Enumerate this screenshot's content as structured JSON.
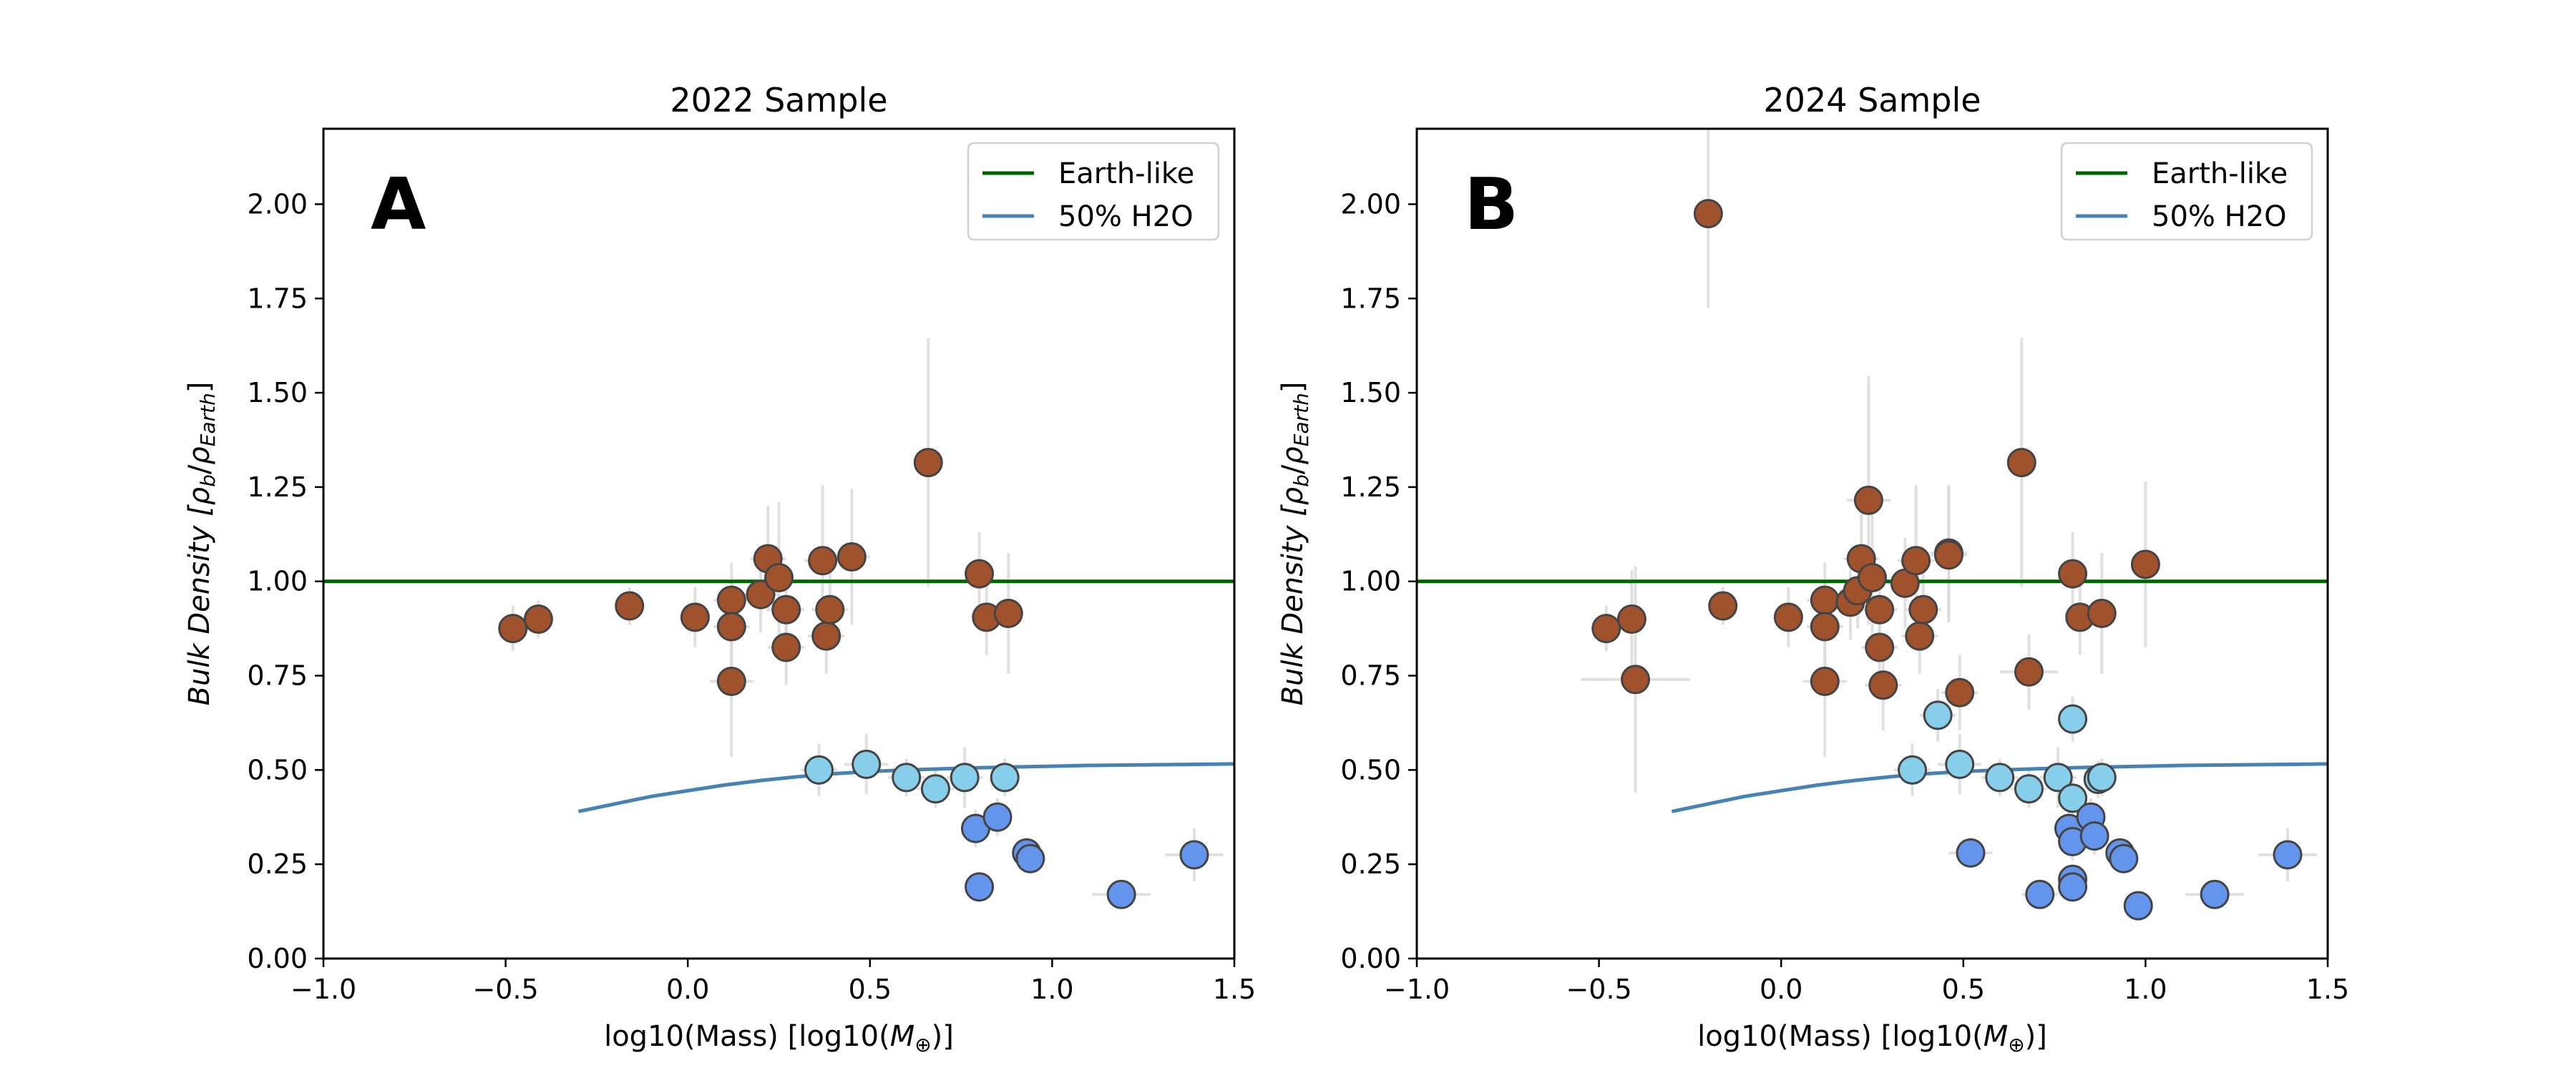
{
  "chart_data": [
    {
      "type": "scatter",
      "title": "2022 Sample",
      "panel_letter": "A",
      "xlabel_text": "log10(Mass) [log10(",
      "xlabel_symbol": "M",
      "xlabel_sub": "⊕",
      "xlabel_end": ")]",
      "ylabel_text": "Bulk Density [",
      "ylabel_rho": "ρ",
      "ylabel_sub_b": "b",
      "ylabel_slash": "/",
      "ylabel_sub_earth": "Earth",
      "ylabel_end": "]",
      "xlim": [
        -1.0,
        1.5
      ],
      "ylim": [
        0.0,
        2.2
      ],
      "xticks": [
        -1.0,
        -0.5,
        0.0,
        0.5,
        1.0,
        1.5
      ],
      "xtick_labels": [
        "−1.0",
        "−0.5",
        "0.0",
        "0.5",
        "1.0",
        "1.5"
      ],
      "yticks": [
        0.0,
        0.25,
        0.5,
        0.75,
        1.0,
        1.25,
        1.5,
        1.75,
        2.0
      ],
      "ytick_labels": [
        "0.00",
        "0.25",
        "0.50",
        "0.75",
        "1.00",
        "1.25",
        "1.50",
        "1.75",
        "2.00"
      ],
      "legend": {
        "placement": "top-right",
        "entries": [
          {
            "label": "Earth-like",
            "color": "#006400"
          },
          {
            "label": "50% H2O",
            "color": "#4682b4"
          }
        ]
      },
      "earth_like_line": {
        "y": 1.0,
        "color": "#006400"
      },
      "h2o_curve": {
        "color": "#4682b4",
        "x": [
          -0.3,
          -0.2,
          -0.1,
          0.0,
          0.1,
          0.2,
          0.3,
          0.4,
          0.5,
          0.6,
          0.7,
          0.8,
          0.9,
          1.0,
          1.1,
          1.2,
          1.3,
          1.4,
          1.5
        ],
        "y": [
          0.39,
          0.41,
          0.43,
          0.445,
          0.46,
          0.472,
          0.482,
          0.49,
          0.496,
          0.5,
          0.503,
          0.506,
          0.508,
          0.51,
          0.512,
          0.513,
          0.514,
          0.515,
          0.516
        ]
      },
      "series": [
        {
          "group": "rocky",
          "color": "#a0522d",
          "points": [
            {
              "x": -0.48,
              "y": 0.875,
              "xerr": 0.04,
              "yerr": 0.06
            },
            {
              "x": -0.41,
              "y": 0.9,
              "xerr": 0.04,
              "yerr": 0.05
            },
            {
              "x": -0.16,
              "y": 0.935,
              "xerr": 0.04,
              "yerr": 0.05
            },
            {
              "x": 0.02,
              "y": 0.905,
              "xerr": 0.04,
              "yerr": 0.08
            },
            {
              "x": 0.12,
              "y": 0.95,
              "xerr": 0.05,
              "yerr": 0.1
            },
            {
              "x": 0.12,
              "y": 0.88,
              "xerr": 0.05,
              "yerr": 0.12
            },
            {
              "x": 0.12,
              "y": 0.735,
              "xerr": 0.06,
              "yerr": 0.2
            },
            {
              "x": 0.2,
              "y": 0.965,
              "xerr": 0.05,
              "yerr": 0.1
            },
            {
              "x": 0.22,
              "y": 1.06,
              "xerr": 0.05,
              "yerr": 0.14
            },
            {
              "x": 0.25,
              "y": 1.01,
              "xerr": 0.04,
              "yerr": 0.2
            },
            {
              "x": 0.27,
              "y": 0.925,
              "xerr": 0.05,
              "yerr": 0.1
            },
            {
              "x": 0.27,
              "y": 0.825,
              "xerr": 0.05,
              "yerr": 0.1
            },
            {
              "x": 0.37,
              "y": 1.055,
              "xerr": 0.05,
              "yerr": 0.2
            },
            {
              "x": 0.38,
              "y": 0.855,
              "xerr": 0.05,
              "yerr": 0.1
            },
            {
              "x": 0.39,
              "y": 0.925,
              "xerr": 0.05,
              "yerr": 0.1
            },
            {
              "x": 0.45,
              "y": 1.065,
              "xerr": 0.05,
              "yerr": 0.18
            },
            {
              "x": 0.66,
              "y": 1.315,
              "xerr": 0.03,
              "yerr": 0.33
            },
            {
              "x": 0.8,
              "y": 1.02,
              "xerr": 0.03,
              "yerr": 0.11
            },
            {
              "x": 0.82,
              "y": 0.905,
              "xerr": 0.03,
              "yerr": 0.1
            },
            {
              "x": 0.88,
              "y": 0.915,
              "xerr": 0.03,
              "yerr": 0.16
            }
          ]
        },
        {
          "group": "water-rich",
          "color": "#87ceeb",
          "points": [
            {
              "x": 0.36,
              "y": 0.5,
              "xerr": 0.05,
              "yerr": 0.07
            },
            {
              "x": 0.49,
              "y": 0.515,
              "xerr": 0.06,
              "yerr": 0.08
            },
            {
              "x": 0.6,
              "y": 0.48,
              "xerr": 0.05,
              "yerr": 0.05
            },
            {
              "x": 0.68,
              "y": 0.45,
              "xerr": 0.05,
              "yerr": 0.05
            },
            {
              "x": 0.76,
              "y": 0.48,
              "xerr": 0.05,
              "yerr": 0.08
            },
            {
              "x": 0.87,
              "y": 0.48,
              "xerr": 0.04,
              "yerr": 0.05
            }
          ]
        },
        {
          "group": "low-density",
          "color": "#6495ed",
          "points": [
            {
              "x": 0.79,
              "y": 0.345,
              "xerr": 0.04,
              "yerr": 0.05
            },
            {
              "x": 0.8,
              "y": 0.19,
              "xerr": 0.04,
              "yerr": 0.04
            },
            {
              "x": 0.85,
              "y": 0.375,
              "xerr": 0.04,
              "yerr": 0.05
            },
            {
              "x": 0.93,
              "y": 0.28,
              "xerr": 0.04,
              "yerr": 0.04
            },
            {
              "x": 0.94,
              "y": 0.265,
              "xerr": 0.04,
              "yerr": 0.04
            },
            {
              "x": 1.19,
              "y": 0.17,
              "xerr": 0.08,
              "yerr": 0.03
            },
            {
              "x": 1.39,
              "y": 0.275,
              "xerr": 0.08,
              "yerr": 0.07
            }
          ]
        }
      ]
    },
    {
      "type": "scatter",
      "title": "2024 Sample",
      "panel_letter": "B",
      "xlabel_text": "log10(Mass) [log10(",
      "xlabel_symbol": "M",
      "xlabel_sub": "⊕",
      "xlabel_end": ")]",
      "ylabel_text": "Bulk Density [",
      "ylabel_rho": "ρ",
      "ylabel_sub_b": "b",
      "ylabel_slash": "/",
      "ylabel_sub_earth": "Earth",
      "ylabel_end": "]",
      "xlim": [
        -1.0,
        1.5
      ],
      "ylim": [
        0.0,
        2.2
      ],
      "xticks": [
        -1.0,
        -0.5,
        0.0,
        0.5,
        1.0,
        1.5
      ],
      "xtick_labels": [
        "−1.0",
        "−0.5",
        "0.0",
        "0.5",
        "1.0",
        "1.5"
      ],
      "yticks": [
        0.0,
        0.25,
        0.5,
        0.75,
        1.0,
        1.25,
        1.5,
        1.75,
        2.0
      ],
      "ytick_labels": [
        "0.00",
        "0.25",
        "0.50",
        "0.75",
        "1.00",
        "1.25",
        "1.50",
        "1.75",
        "2.00"
      ],
      "legend": {
        "placement": "top-right",
        "entries": [
          {
            "label": "Earth-like",
            "color": "#006400"
          },
          {
            "label": "50% H2O",
            "color": "#4682b4"
          }
        ]
      },
      "earth_like_line": {
        "y": 1.0,
        "color": "#006400"
      },
      "h2o_curve": {
        "color": "#4682b4",
        "x": [
          -0.3,
          -0.2,
          -0.1,
          0.0,
          0.1,
          0.2,
          0.3,
          0.4,
          0.5,
          0.6,
          0.7,
          0.8,
          0.9,
          1.0,
          1.1,
          1.2,
          1.3,
          1.4,
          1.5
        ],
        "y": [
          0.39,
          0.41,
          0.43,
          0.445,
          0.46,
          0.472,
          0.482,
          0.49,
          0.496,
          0.5,
          0.503,
          0.506,
          0.508,
          0.51,
          0.512,
          0.513,
          0.514,
          0.515,
          0.516
        ]
      },
      "series": [
        {
          "group": "rocky",
          "color": "#a0522d",
          "points": [
            {
              "x": -0.2,
              "y": 1.975,
              "xerr": 0.03,
              "yerr": 0.25
            },
            {
              "x": -0.48,
              "y": 0.875,
              "xerr": 0.04,
              "yerr": 0.06
            },
            {
              "x": -0.41,
              "y": 0.9,
              "xerr": 0.04,
              "yerr": 0.13
            },
            {
              "x": -0.4,
              "y": 0.74,
              "xerr": 0.15,
              "yerr": 0.3
            },
            {
              "x": -0.16,
              "y": 0.935,
              "xerr": 0.04,
              "yerr": 0.05
            },
            {
              "x": 0.02,
              "y": 0.905,
              "xerr": 0.04,
              "yerr": 0.08
            },
            {
              "x": 0.12,
              "y": 0.95,
              "xerr": 0.05,
              "yerr": 0.1
            },
            {
              "x": 0.12,
              "y": 0.88,
              "xerr": 0.05,
              "yerr": 0.12
            },
            {
              "x": 0.12,
              "y": 0.735,
              "xerr": 0.06,
              "yerr": 0.2
            },
            {
              "x": 0.19,
              "y": 0.945,
              "xerr": 0.05,
              "yerr": 0.1
            },
            {
              "x": 0.21,
              "y": 0.975,
              "xerr": 0.05,
              "yerr": 0.1
            },
            {
              "x": 0.22,
              "y": 1.06,
              "xerr": 0.05,
              "yerr": 0.14
            },
            {
              "x": 0.24,
              "y": 1.215,
              "xerr": 0.06,
              "yerr": 0.33
            },
            {
              "x": 0.25,
              "y": 1.01,
              "xerr": 0.04,
              "yerr": 0.2
            },
            {
              "x": 0.27,
              "y": 0.925,
              "xerr": 0.05,
              "yerr": 0.1
            },
            {
              "x": 0.27,
              "y": 0.825,
              "xerr": 0.05,
              "yerr": 0.1
            },
            {
              "x": 0.28,
              "y": 0.725,
              "xerr": 0.05,
              "yerr": 0.12
            },
            {
              "x": 0.34,
              "y": 0.995,
              "xerr": 0.05,
              "yerr": 0.12
            },
            {
              "x": 0.37,
              "y": 1.055,
              "xerr": 0.05,
              "yerr": 0.2
            },
            {
              "x": 0.38,
              "y": 0.855,
              "xerr": 0.05,
              "yerr": 0.1
            },
            {
              "x": 0.39,
              "y": 0.925,
              "xerr": 0.05,
              "yerr": 0.1
            },
            {
              "x": 0.46,
              "y": 1.075,
              "xerr": 0.05,
              "yerr": 0.18
            },
            {
              "x": 0.46,
              "y": 1.07,
              "xerr": 0.05,
              "yerr": 0.18
            },
            {
              "x": 0.49,
              "y": 0.705,
              "xerr": 0.05,
              "yerr": 0.1
            },
            {
              "x": 0.66,
              "y": 1.315,
              "xerr": 0.03,
              "yerr": 0.33
            },
            {
              "x": 0.68,
              "y": 0.76,
              "xerr": 0.08,
              "yerr": 0.1
            },
            {
              "x": 0.8,
              "y": 1.02,
              "xerr": 0.03,
              "yerr": 0.11
            },
            {
              "x": 0.82,
              "y": 0.905,
              "xerr": 0.03,
              "yerr": 0.1
            },
            {
              "x": 0.88,
              "y": 0.915,
              "xerr": 0.03,
              "yerr": 0.16
            },
            {
              "x": 1.0,
              "y": 1.045,
              "xerr": 0.04,
              "yerr": 0.22
            }
          ]
        },
        {
          "group": "water-rich",
          "color": "#87ceeb",
          "points": [
            {
              "x": 0.36,
              "y": 0.5,
              "xerr": 0.05,
              "yerr": 0.07
            },
            {
              "x": 0.43,
              "y": 0.645,
              "xerr": 0.05,
              "yerr": 0.07
            },
            {
              "x": 0.49,
              "y": 0.515,
              "xerr": 0.06,
              "yerr": 0.08
            },
            {
              "x": 0.6,
              "y": 0.48,
              "xerr": 0.05,
              "yerr": 0.05
            },
            {
              "x": 0.68,
              "y": 0.45,
              "xerr": 0.05,
              "yerr": 0.05
            },
            {
              "x": 0.76,
              "y": 0.48,
              "xerr": 0.05,
              "yerr": 0.08
            },
            {
              "x": 0.8,
              "y": 0.635,
              "xerr": 0.04,
              "yerr": 0.06
            },
            {
              "x": 0.8,
              "y": 0.425,
              "xerr": 0.04,
              "yerr": 0.05
            },
            {
              "x": 0.87,
              "y": 0.475,
              "xerr": 0.04,
              "yerr": 0.05
            },
            {
              "x": 0.88,
              "y": 0.48,
              "xerr": 0.04,
              "yerr": 0.05
            }
          ]
        },
        {
          "group": "low-density",
          "color": "#6495ed",
          "points": [
            {
              "x": 0.52,
              "y": 0.28,
              "xerr": 0.06,
              "yerr": 0.04
            },
            {
              "x": 0.71,
              "y": 0.17,
              "xerr": 0.05,
              "yerr": 0.03
            },
            {
              "x": 0.79,
              "y": 0.345,
              "xerr": 0.04,
              "yerr": 0.05
            },
            {
              "x": 0.8,
              "y": 0.31,
              "xerr": 0.04,
              "yerr": 0.05
            },
            {
              "x": 0.8,
              "y": 0.21,
              "xerr": 0.04,
              "yerr": 0.04
            },
            {
              "x": 0.8,
              "y": 0.19,
              "xerr": 0.04,
              "yerr": 0.04
            },
            {
              "x": 0.85,
              "y": 0.375,
              "xerr": 0.04,
              "yerr": 0.05
            },
            {
              "x": 0.86,
              "y": 0.325,
              "xerr": 0.04,
              "yerr": 0.05
            },
            {
              "x": 0.93,
              "y": 0.28,
              "xerr": 0.04,
              "yerr": 0.04
            },
            {
              "x": 0.94,
              "y": 0.265,
              "xerr": 0.04,
              "yerr": 0.04
            },
            {
              "x": 0.98,
              "y": 0.14,
              "xerr": 0.04,
              "yerr": 0.03
            },
            {
              "x": 1.19,
              "y": 0.17,
              "xerr": 0.08,
              "yerr": 0.03
            },
            {
              "x": 1.39,
              "y": 0.275,
              "xerr": 0.08,
              "yerr": 0.07
            }
          ]
        }
      ]
    }
  ]
}
